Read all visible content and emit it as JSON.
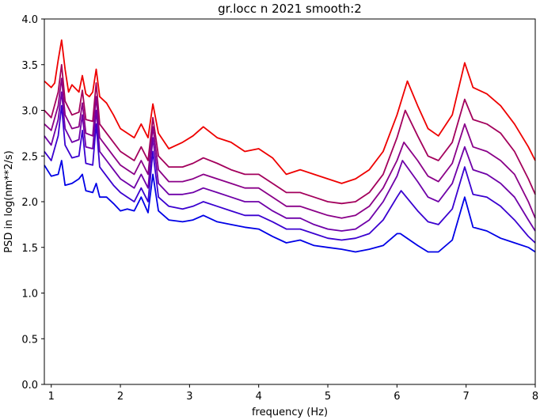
{
  "chart_data": {
    "type": "line",
    "title": "gr.locc n 2021 smooth:2",
    "xlabel": "frequency (Hz)",
    "ylabel": "PSD in log(nm**2/s)",
    "xlim": [
      0.9,
      8.0
    ],
    "ylim": [
      0.0,
      4.0
    ],
    "xticks": [
      1,
      2,
      3,
      4,
      5,
      6,
      7,
      8
    ],
    "yticks": [
      0.0,
      0.5,
      1.0,
      1.5,
      2.0,
      2.5,
      3.0,
      3.5,
      4.0
    ],
    "xtick_labels": [
      "1",
      "2",
      "3",
      "4",
      "5",
      "6",
      "7",
      "8"
    ],
    "ytick_labels": [
      "0.0",
      "0.5",
      "1.0",
      "1.5",
      "2.0",
      "2.5",
      "3.0",
      "3.5",
      "4.0"
    ],
    "grid": false,
    "legend": "none",
    "series": [
      {
        "color": "#ee0000",
        "values": [
          [
            0.9,
            3.32
          ],
          [
            1.0,
            3.25
          ],
          [
            1.05,
            3.3
          ],
          [
            1.1,
            3.55
          ],
          [
            1.15,
            3.77
          ],
          [
            1.2,
            3.45
          ],
          [
            1.25,
            3.2
          ],
          [
            1.3,
            3.28
          ],
          [
            1.4,
            3.2
          ],
          [
            1.45,
            3.38
          ],
          [
            1.5,
            3.18
          ],
          [
            1.55,
            3.15
          ],
          [
            1.6,
            3.2
          ],
          [
            1.65,
            3.45
          ],
          [
            1.7,
            3.15
          ],
          [
            1.8,
            3.08
          ],
          [
            1.9,
            2.95
          ],
          [
            2.0,
            2.8
          ],
          [
            2.1,
            2.75
          ],
          [
            2.2,
            2.7
          ],
          [
            2.3,
            2.85
          ],
          [
            2.4,
            2.7
          ],
          [
            2.47,
            3.07
          ],
          [
            2.55,
            2.75
          ],
          [
            2.7,
            2.58
          ],
          [
            2.9,
            2.65
          ],
          [
            3.05,
            2.72
          ],
          [
            3.2,
            2.82
          ],
          [
            3.4,
            2.7
          ],
          [
            3.6,
            2.65
          ],
          [
            3.8,
            2.55
          ],
          [
            4.0,
            2.58
          ],
          [
            4.2,
            2.48
          ],
          [
            4.4,
            2.3
          ],
          [
            4.6,
            2.35
          ],
          [
            4.8,
            2.3
          ],
          [
            5.0,
            2.25
          ],
          [
            5.2,
            2.2
          ],
          [
            5.4,
            2.25
          ],
          [
            5.6,
            2.35
          ],
          [
            5.8,
            2.55
          ],
          [
            6.0,
            2.95
          ],
          [
            6.15,
            3.32
          ],
          [
            6.3,
            3.05
          ],
          [
            6.45,
            2.8
          ],
          [
            6.6,
            2.72
          ],
          [
            6.8,
            2.95
          ],
          [
            6.98,
            3.52
          ],
          [
            7.1,
            3.25
          ],
          [
            7.3,
            3.18
          ],
          [
            7.5,
            3.05
          ],
          [
            7.7,
            2.85
          ],
          [
            7.9,
            2.6
          ],
          [
            8.0,
            2.45
          ]
        ]
      },
      {
        "color": "#a3005c",
        "values": [
          [
            0.9,
            3.0
          ],
          [
            1.0,
            2.92
          ],
          [
            1.1,
            3.2
          ],
          [
            1.15,
            3.5
          ],
          [
            1.2,
            3.1
          ],
          [
            1.3,
            2.95
          ],
          [
            1.4,
            2.98
          ],
          [
            1.45,
            3.22
          ],
          [
            1.5,
            2.9
          ],
          [
            1.6,
            2.88
          ],
          [
            1.65,
            3.3
          ],
          [
            1.7,
            2.85
          ],
          [
            1.8,
            2.75
          ],
          [
            1.9,
            2.65
          ],
          [
            2.0,
            2.55
          ],
          [
            2.1,
            2.5
          ],
          [
            2.2,
            2.45
          ],
          [
            2.3,
            2.6
          ],
          [
            2.4,
            2.45
          ],
          [
            2.47,
            2.92
          ],
          [
            2.55,
            2.5
          ],
          [
            2.7,
            2.38
          ],
          [
            2.9,
            2.38
          ],
          [
            3.05,
            2.42
          ],
          [
            3.2,
            2.48
          ],
          [
            3.4,
            2.42
          ],
          [
            3.6,
            2.35
          ],
          [
            3.8,
            2.3
          ],
          [
            4.0,
            2.3
          ],
          [
            4.2,
            2.2
          ],
          [
            4.4,
            2.1
          ],
          [
            4.6,
            2.1
          ],
          [
            4.8,
            2.05
          ],
          [
            5.0,
            2.0
          ],
          [
            5.2,
            1.98
          ],
          [
            5.4,
            2.0
          ],
          [
            5.6,
            2.1
          ],
          [
            5.8,
            2.3
          ],
          [
            6.0,
            2.7
          ],
          [
            6.12,
            3.0
          ],
          [
            6.3,
            2.72
          ],
          [
            6.45,
            2.5
          ],
          [
            6.6,
            2.45
          ],
          [
            6.8,
            2.65
          ],
          [
            6.98,
            3.12
          ],
          [
            7.1,
            2.9
          ],
          [
            7.3,
            2.85
          ],
          [
            7.5,
            2.75
          ],
          [
            7.7,
            2.55
          ],
          [
            7.9,
            2.25
          ],
          [
            8.0,
            2.08
          ]
        ]
      },
      {
        "color": "#8a0088",
        "values": [
          [
            0.9,
            2.85
          ],
          [
            1.0,
            2.78
          ],
          [
            1.1,
            3.05
          ],
          [
            1.15,
            3.35
          ],
          [
            1.2,
            2.95
          ],
          [
            1.3,
            2.8
          ],
          [
            1.4,
            2.82
          ],
          [
            1.45,
            3.08
          ],
          [
            1.5,
            2.75
          ],
          [
            1.6,
            2.72
          ],
          [
            1.65,
            3.15
          ],
          [
            1.7,
            2.7
          ],
          [
            1.8,
            2.6
          ],
          [
            1.9,
            2.5
          ],
          [
            2.0,
            2.4
          ],
          [
            2.1,
            2.35
          ],
          [
            2.2,
            2.3
          ],
          [
            2.3,
            2.45
          ],
          [
            2.4,
            2.3
          ],
          [
            2.47,
            2.82
          ],
          [
            2.55,
            2.35
          ],
          [
            2.7,
            2.22
          ],
          [
            2.9,
            2.22
          ],
          [
            3.05,
            2.25
          ],
          [
            3.2,
            2.3
          ],
          [
            3.4,
            2.25
          ],
          [
            3.6,
            2.2
          ],
          [
            3.8,
            2.15
          ],
          [
            4.0,
            2.15
          ],
          [
            4.2,
            2.05
          ],
          [
            4.4,
            1.95
          ],
          [
            4.6,
            1.95
          ],
          [
            4.8,
            1.9
          ],
          [
            5.0,
            1.85
          ],
          [
            5.2,
            1.82
          ],
          [
            5.4,
            1.85
          ],
          [
            5.6,
            1.95
          ],
          [
            5.8,
            2.15
          ],
          [
            6.0,
            2.45
          ],
          [
            6.1,
            2.65
          ],
          [
            6.3,
            2.45
          ],
          [
            6.45,
            2.28
          ],
          [
            6.6,
            2.22
          ],
          [
            6.8,
            2.42
          ],
          [
            6.98,
            2.85
          ],
          [
            7.1,
            2.6
          ],
          [
            7.3,
            2.55
          ],
          [
            7.5,
            2.45
          ],
          [
            7.7,
            2.3
          ],
          [
            7.9,
            2.0
          ],
          [
            8.0,
            1.82
          ]
        ]
      },
      {
        "color": "#6e00a8",
        "values": [
          [
            0.9,
            2.72
          ],
          [
            1.0,
            2.62
          ],
          [
            1.1,
            2.9
          ],
          [
            1.15,
            3.2
          ],
          [
            1.2,
            2.8
          ],
          [
            1.3,
            2.65
          ],
          [
            1.4,
            2.68
          ],
          [
            1.45,
            2.95
          ],
          [
            1.5,
            2.6
          ],
          [
            1.6,
            2.58
          ],
          [
            1.65,
            3.0
          ],
          [
            1.7,
            2.55
          ],
          [
            1.8,
            2.45
          ],
          [
            1.9,
            2.35
          ],
          [
            2.0,
            2.25
          ],
          [
            2.1,
            2.2
          ],
          [
            2.2,
            2.15
          ],
          [
            2.3,
            2.3
          ],
          [
            2.4,
            2.15
          ],
          [
            2.47,
            2.7
          ],
          [
            2.55,
            2.2
          ],
          [
            2.7,
            2.08
          ],
          [
            2.9,
            2.08
          ],
          [
            3.05,
            2.1
          ],
          [
            3.2,
            2.15
          ],
          [
            3.4,
            2.1
          ],
          [
            3.6,
            2.05
          ],
          [
            3.8,
            2.0
          ],
          [
            4.0,
            2.0
          ],
          [
            4.2,
            1.9
          ],
          [
            4.4,
            1.82
          ],
          [
            4.6,
            1.82
          ],
          [
            4.8,
            1.75
          ],
          [
            5.0,
            1.7
          ],
          [
            5.2,
            1.68
          ],
          [
            5.4,
            1.7
          ],
          [
            5.6,
            1.8
          ],
          [
            5.8,
            2.0
          ],
          [
            6.0,
            2.28
          ],
          [
            6.08,
            2.45
          ],
          [
            6.3,
            2.22
          ],
          [
            6.45,
            2.05
          ],
          [
            6.6,
            2.0
          ],
          [
            6.8,
            2.2
          ],
          [
            6.98,
            2.6
          ],
          [
            7.1,
            2.35
          ],
          [
            7.3,
            2.3
          ],
          [
            7.5,
            2.2
          ],
          [
            7.7,
            2.05
          ],
          [
            7.9,
            1.8
          ],
          [
            8.0,
            1.68
          ]
        ]
      },
      {
        "color": "#3a00d0",
        "values": [
          [
            0.9,
            2.55
          ],
          [
            1.0,
            2.45
          ],
          [
            1.1,
            2.72
          ],
          [
            1.15,
            3.05
          ],
          [
            1.2,
            2.62
          ],
          [
            1.3,
            2.48
          ],
          [
            1.4,
            2.5
          ],
          [
            1.45,
            2.78
          ],
          [
            1.5,
            2.42
          ],
          [
            1.6,
            2.4
          ],
          [
            1.65,
            2.85
          ],
          [
            1.7,
            2.38
          ],
          [
            1.8,
            2.28
          ],
          [
            1.9,
            2.18
          ],
          [
            2.0,
            2.1
          ],
          [
            2.1,
            2.05
          ],
          [
            2.2,
            2.0
          ],
          [
            2.3,
            2.15
          ],
          [
            2.4,
            2.0
          ],
          [
            2.47,
            2.55
          ],
          [
            2.55,
            2.05
          ],
          [
            2.7,
            1.95
          ],
          [
            2.9,
            1.92
          ],
          [
            3.05,
            1.95
          ],
          [
            3.2,
            2.0
          ],
          [
            3.4,
            1.95
          ],
          [
            3.6,
            1.9
          ],
          [
            3.8,
            1.85
          ],
          [
            4.0,
            1.85
          ],
          [
            4.2,
            1.78
          ],
          [
            4.4,
            1.7
          ],
          [
            4.6,
            1.7
          ],
          [
            4.8,
            1.65
          ],
          [
            5.0,
            1.6
          ],
          [
            5.2,
            1.58
          ],
          [
            5.4,
            1.6
          ],
          [
            5.6,
            1.65
          ],
          [
            5.8,
            1.8
          ],
          [
            6.0,
            2.05
          ],
          [
            6.06,
            2.12
          ],
          [
            6.3,
            1.9
          ],
          [
            6.45,
            1.78
          ],
          [
            6.6,
            1.75
          ],
          [
            6.8,
            1.92
          ],
          [
            6.98,
            2.38
          ],
          [
            7.1,
            2.08
          ],
          [
            7.3,
            2.05
          ],
          [
            7.5,
            1.95
          ],
          [
            7.7,
            1.8
          ],
          [
            7.9,
            1.62
          ],
          [
            8.0,
            1.55
          ]
        ]
      },
      {
        "color": "#0000e6",
        "values": [
          [
            0.9,
            2.4
          ],
          [
            1.0,
            2.28
          ],
          [
            1.1,
            2.3
          ],
          [
            1.15,
            2.45
          ],
          [
            1.2,
            2.18
          ],
          [
            1.3,
            2.2
          ],
          [
            1.4,
            2.25
          ],
          [
            1.45,
            2.3
          ],
          [
            1.5,
            2.12
          ],
          [
            1.6,
            2.1
          ],
          [
            1.65,
            2.2
          ],
          [
            1.7,
            2.05
          ],
          [
            1.8,
            2.05
          ],
          [
            1.9,
            1.98
          ],
          [
            2.0,
            1.9
          ],
          [
            2.1,
            1.92
          ],
          [
            2.2,
            1.9
          ],
          [
            2.3,
            2.05
          ],
          [
            2.4,
            1.88
          ],
          [
            2.47,
            2.3
          ],
          [
            2.55,
            1.9
          ],
          [
            2.7,
            1.8
          ],
          [
            2.9,
            1.78
          ],
          [
            3.05,
            1.8
          ],
          [
            3.2,
            1.85
          ],
          [
            3.4,
            1.78
          ],
          [
            3.6,
            1.75
          ],
          [
            3.8,
            1.72
          ],
          [
            4.0,
            1.7
          ],
          [
            4.2,
            1.62
          ],
          [
            4.4,
            1.55
          ],
          [
            4.6,
            1.58
          ],
          [
            4.8,
            1.52
          ],
          [
            5.0,
            1.5
          ],
          [
            5.2,
            1.48
          ],
          [
            5.4,
            1.45
          ],
          [
            5.6,
            1.48
          ],
          [
            5.8,
            1.52
          ],
          [
            6.0,
            1.65
          ],
          [
            6.05,
            1.65
          ],
          [
            6.3,
            1.52
          ],
          [
            6.45,
            1.45
          ],
          [
            6.6,
            1.45
          ],
          [
            6.8,
            1.58
          ],
          [
            6.98,
            2.05
          ],
          [
            7.1,
            1.72
          ],
          [
            7.3,
            1.68
          ],
          [
            7.5,
            1.6
          ],
          [
            7.7,
            1.55
          ],
          [
            7.9,
            1.5
          ],
          [
            8.0,
            1.45
          ]
        ]
      }
    ]
  }
}
